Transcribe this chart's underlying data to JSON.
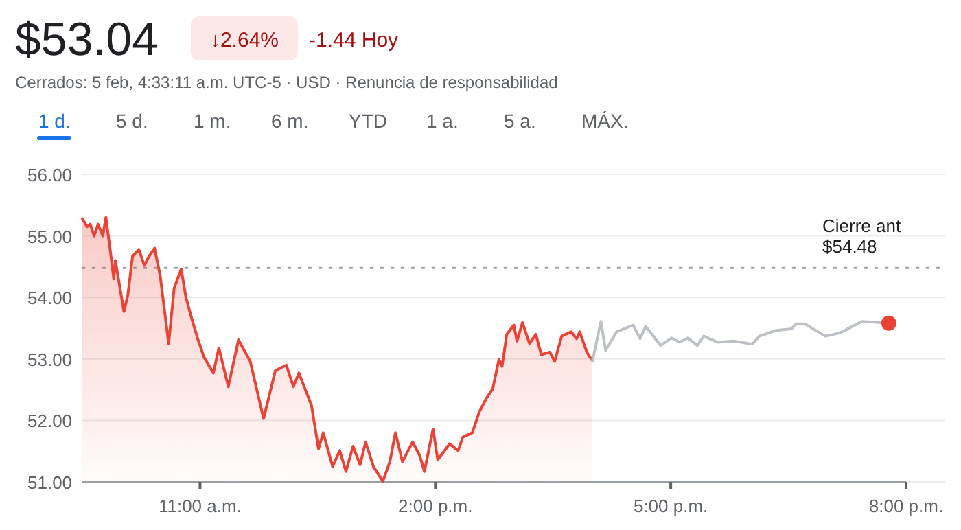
{
  "chart_data": {
    "type": "line",
    "title": "$53.04",
    "subtitle": "Cerrados: 5 feb, 4:33:11 a.m. UTC-5 · USD · Renuncia de responsabilidad",
    "annotations": [
      "↓2.64%",
      "-1.44 Hoy",
      "1 d.",
      "5 d.",
      "1 m.",
      "6 m.",
      "YTD",
      "1 a.",
      "5 a.",
      "MÁX."
    ],
    "xlim": [
      9.5,
      20
    ],
    "xticks": [
      {
        "value": 11,
        "label": "11:00 a.m."
      },
      {
        "value": 14,
        "label": "2:00 p.m."
      },
      {
        "value": 17,
        "label": "5:00 p.m."
      },
      {
        "value": 20,
        "label": "8:00 p.m."
      }
    ],
    "ylim": [
      51,
      56
    ],
    "yticks": [
      {
        "value": 51,
        "label": "51.00"
      },
      {
        "value": 52,
        "label": "52.00"
      },
      {
        "value": 53,
        "label": "53.00"
      },
      {
        "value": 54,
        "label": "54.00"
      },
      {
        "value": 55,
        "label": "55.00"
      },
      {
        "value": 56,
        "label": "56.00"
      }
    ],
    "grid": "y",
    "marker": "none",
    "line_style": "solid",
    "ref_lines": [
      {
        "axis": "y",
        "value": 54.48,
        "label": "Cierre ant $54.48",
        "line_style": "dotted",
        "color": "#9aa0a6"
      }
    ],
    "series": [
      {
        "type": "area",
        "color": "#ea4335",
        "x": [
          9.5,
          9.56,
          9.6,
          9.65,
          9.7,
          9.76,
          9.8,
          9.85,
          9.9,
          9.92,
          10.03,
          10.08,
          10.14,
          10.22,
          10.29,
          10.35,
          10.42,
          10.49,
          10.6,
          10.67,
          10.76,
          10.82,
          10.9,
          10.97,
          11.05,
          11.17,
          11.24,
          11.36,
          11.49,
          11.64,
          11.81,
          11.96,
          12.1,
          12.19,
          12.26,
          12.42,
          12.51,
          12.57,
          12.69,
          12.78,
          12.86,
          12.95,
          13.04,
          13.11,
          13.21,
          13.33,
          13.42,
          13.49,
          13.58,
          13.71,
          13.8,
          13.86,
          13.97,
          14.03,
          14.18,
          14.29,
          14.35,
          14.47,
          14.56,
          14.65,
          14.73,
          14.81,
          14.85,
          14.91,
          15,
          15.04,
          15.11,
          15.2,
          15.28,
          15.35,
          15.46,
          15.52,
          15.61,
          15.73,
          15.8,
          15.84,
          15.93,
          16
        ],
        "values": [
          55.28,
          55.15,
          55.19,
          55,
          55.19,
          55,
          55.3,
          54.82,
          54.3,
          54.6,
          53.77,
          54.04,
          54.67,
          54.78,
          54.52,
          54.67,
          54.8,
          54.37,
          53.25,
          54.15,
          54.46,
          54,
          53.63,
          53.33,
          53.03,
          52.77,
          53.18,
          52.55,
          53.31,
          52.96,
          52.03,
          52.81,
          52.9,
          52.55,
          52.77,
          52.25,
          51.54,
          51.8,
          51.25,
          51.51,
          51.17,
          51.58,
          51.28,
          51.65,
          51.25,
          51.01,
          51.33,
          51.8,
          51.33,
          51.65,
          51.43,
          51.17,
          51.86,
          51.36,
          51.62,
          51.51,
          51.73,
          51.8,
          52.14,
          52.36,
          52.51,
          52.99,
          52.88,
          53.4,
          53.55,
          53.29,
          53.59,
          53.25,
          53.4,
          53.07,
          53.11,
          52.96,
          53.37,
          53.44,
          53.33,
          53.44,
          53.11,
          52.97
        ]
      },
      {
        "color": "#bdc1c6",
        "x": [
          16,
          16.02,
          16.11,
          16.17,
          16.31,
          16.52,
          16.61,
          16.68,
          16.87,
          17.01,
          17.11,
          17.22,
          17.34,
          17.42,
          17.6,
          17.8,
          18.04,
          18.13,
          18.33,
          18.54,
          18.6,
          18.71,
          18.97,
          19.15,
          19.44,
          19.68,
          19.78
        ],
        "values": [
          52.97,
          53.07,
          53.61,
          53.14,
          53.44,
          53.55,
          53.33,
          53.53,
          53.22,
          53.34,
          53.27,
          53.34,
          53.22,
          53.37,
          53.27,
          53.29,
          53.24,
          53.37,
          53.46,
          53.49,
          53.57,
          53.57,
          53.37,
          53.42,
          53.61,
          53.59,
          53.58
        ]
      },
      {
        "type": "scatter",
        "marker": "circle",
        "color": "#ea4335",
        "x": [
          19.78
        ],
        "values": [
          53.58
        ]
      }
    ]
  }
}
